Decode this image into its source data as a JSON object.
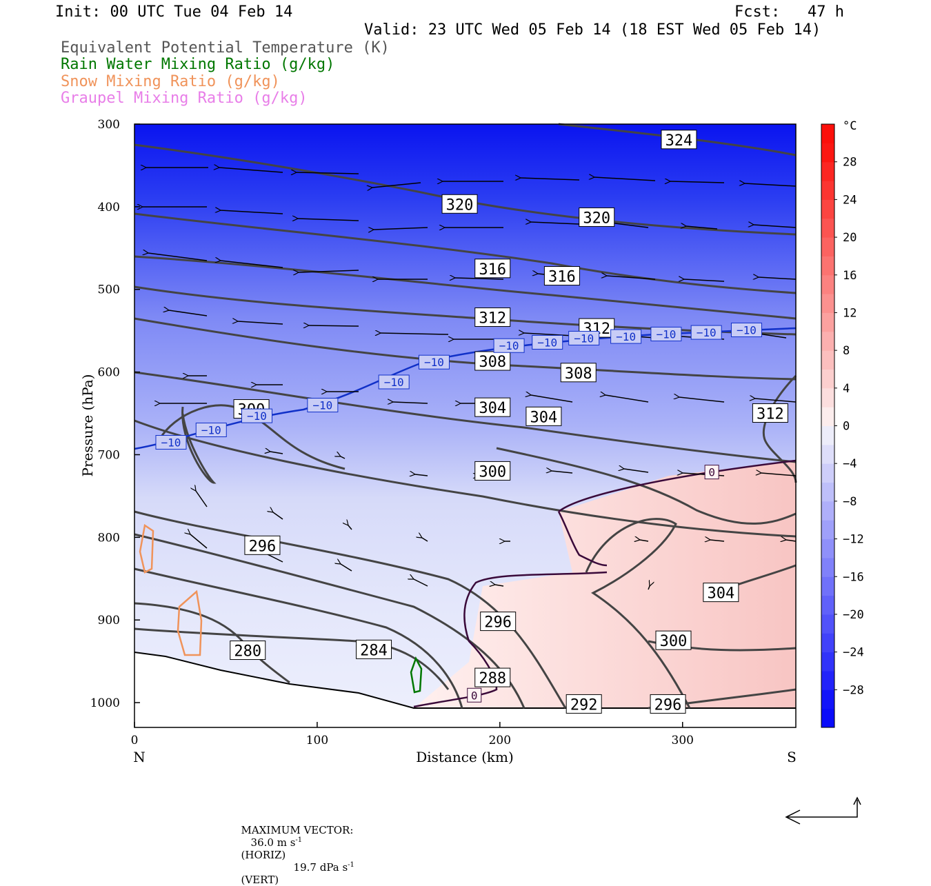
{
  "header": {
    "init": "Init: 00 UTC Tue 04 Feb 14",
    "fcst": "Fcst:   47 h",
    "valid": "Valid: 23 UTC Wed 05 Feb 14 (18 EST Wed 05 Feb 14)"
  },
  "legend": [
    {
      "label": "Equivalent Potential Temperature (K)",
      "color": "#555555"
    },
    {
      "label": "Rain Water Mixing Ratio (g/kg)",
      "color": "#007700"
    },
    {
      "label": "Snow Mixing Ratio (g/kg)",
      "color": "#f0935a"
    },
    {
      "label": "Graupel Mixing Ratio (g/kg)",
      "color": "#e87ee8"
    }
  ],
  "chart_data": {
    "type": "cross-section",
    "xlabel": "Distance (km)",
    "ylabel": "Pressure (hPa)",
    "xlim": [
      0,
      362
    ],
    "ylim": [
      1030,
      300
    ],
    "y_log": false,
    "x_ticks": [
      0,
      100,
      200,
      300
    ],
    "y_ticks": [
      300,
      400,
      500,
      600,
      700,
      800,
      900,
      1000
    ],
    "x_end_labels": {
      "left": "N",
      "right": "S"
    },
    "colorbar": {
      "unit": "°C",
      "ticks": [
        28,
        24,
        20,
        16,
        12,
        8,
        4,
        0,
        -4,
        -8,
        -12,
        -16,
        -20,
        -24,
        -28
      ],
      "range": [
        -32,
        32
      ]
    },
    "theta_e_contours": [
      {
        "label": "324",
        "x": 298,
        "p": 319
      },
      {
        "label": "320",
        "x": 178,
        "p": 397
      },
      {
        "label": "320",
        "x": 253,
        "p": 413
      },
      {
        "label": "316",
        "x": 196,
        "p": 475
      },
      {
        "label": "316",
        "x": 234,
        "p": 484
      },
      {
        "label": "312",
        "x": 196,
        "p": 534
      },
      {
        "label": "312",
        "x": 253,
        "p": 547
      },
      {
        "label": "312",
        "x": 348,
        "p": 650
      },
      {
        "label": "308",
        "x": 196,
        "p": 587
      },
      {
        "label": "308",
        "x": 243,
        "p": 601
      },
      {
        "label": "304",
        "x": 196,
        "p": 643
      },
      {
        "label": "304",
        "x": 224,
        "p": 654
      },
      {
        "label": "304",
        "x": 321,
        "p": 867
      },
      {
        "label": "300",
        "x": 64,
        "p": 645
      },
      {
        "label": "300",
        "x": 196,
        "p": 720
      },
      {
        "label": "300",
        "x": 295,
        "p": 925
      },
      {
        "label": "296",
        "x": 70,
        "p": 810
      },
      {
        "label": "296",
        "x": 199,
        "p": 902
      },
      {
        "label": "296",
        "x": 292,
        "p": 1002
      },
      {
        "label": "292",
        "x": 246,
        "p": 1002
      },
      {
        "label": "288",
        "x": 196,
        "p": 970
      },
      {
        "label": "284",
        "x": 131,
        "p": 936
      },
      {
        "label": "280",
        "x": 62,
        "p": 937
      }
    ],
    "temperature_contours": [
      {
        "label": "−10",
        "x": 20,
        "p": 685
      },
      {
        "label": "−10",
        "x": 42,
        "p": 670
      },
      {
        "label": "−10",
        "x": 67,
        "p": 653
      },
      {
        "label": "−10",
        "x": 103,
        "p": 640
      },
      {
        "label": "−10",
        "x": 142,
        "p": 612
      },
      {
        "label": "−10",
        "x": 164,
        "p": 588
      },
      {
        "label": "−10",
        "x": 205,
        "p": 568
      },
      {
        "label": "−10",
        "x": 226,
        "p": 564
      },
      {
        "label": "−10",
        "x": 246,
        "p": 559
      },
      {
        "label": "−10",
        "x": 269,
        "p": 557
      },
      {
        "label": "−10",
        "x": 291,
        "p": 554
      },
      {
        "label": "−10",
        "x": 313,
        "p": 552
      },
      {
        "label": "−10",
        "x": 335,
        "p": 549
      },
      {
        "label": "0",
        "x": 316,
        "p": 721
      },
      {
        "label": "0",
        "x": 186,
        "p": 991
      }
    ],
    "vector_scale": {
      "label": "MAXIMUM VECTOR:",
      "horiz": "36.0 m s",
      "horiz_unit": "(HORIZ)",
      "vert": "19.7 dPa s",
      "vert_unit": "(VERT)",
      "exponent": "-1"
    }
  }
}
